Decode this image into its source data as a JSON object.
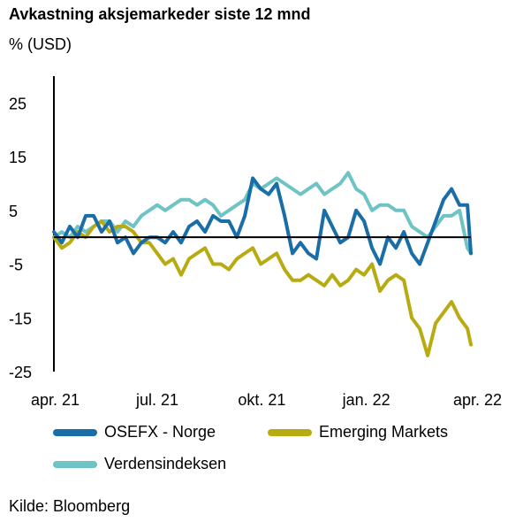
{
  "title": "Avkastning aksjemarkeder siste 12 mnd",
  "subtitle": "% (USD)",
  "source": "Kilde: Bloomberg",
  "colors": {
    "osefx": "#1a6ea8",
    "em": "#b8ab12",
    "world": "#6ec3c4",
    "axis": "#000000"
  },
  "chart_data": {
    "type": "line",
    "ylim": [
      -25,
      30
    ],
    "yticks": [
      "25",
      "15",
      "5",
      "-5",
      "-15",
      "-25"
    ],
    "ytick_values": [
      25,
      15,
      5,
      -5,
      -15,
      -25
    ],
    "xticks": [
      "apr. 21",
      "jul. 21",
      "okt. 21",
      "jan. 22",
      "apr. 22"
    ],
    "xtick_values": [
      "2021-04-20",
      "2021-07-20",
      "2021-10-20",
      "2022-01-20",
      "2022-04-20"
    ],
    "xlim": [
      "2021-04-20",
      "2022-04-22"
    ],
    "zero_line": true,
    "grid": false,
    "legend_position": "bottom",
    "series": [
      {
        "name": "OSEFX - Norge",
        "color_key": "osefx",
        "x": [
          "2021-04-20",
          "2021-04-27",
          "2021-05-04",
          "2021-05-11",
          "2021-05-18",
          "2021-05-25",
          "2021-06-01",
          "2021-06-08",
          "2021-06-15",
          "2021-06-22",
          "2021-06-29",
          "2021-07-06",
          "2021-07-13",
          "2021-07-20",
          "2021-07-27",
          "2021-08-03",
          "2021-08-10",
          "2021-08-17",
          "2021-08-24",
          "2021-08-31",
          "2021-09-07",
          "2021-09-14",
          "2021-09-21",
          "2021-09-28",
          "2021-10-05",
          "2021-10-12",
          "2021-10-19",
          "2021-10-26",
          "2021-11-02",
          "2021-11-09",
          "2021-11-16",
          "2021-11-23",
          "2021-11-30",
          "2021-12-07",
          "2021-12-14",
          "2021-12-21",
          "2021-12-28",
          "2022-01-04",
          "2022-01-11",
          "2022-01-18",
          "2022-01-25",
          "2022-02-01",
          "2022-02-08",
          "2022-02-15",
          "2022-02-22",
          "2022-03-01",
          "2022-03-08",
          "2022-03-15",
          "2022-03-22",
          "2022-03-29",
          "2022-04-05",
          "2022-04-12",
          "2022-04-19",
          "2022-04-22"
        ],
        "values": [
          1,
          -1,
          2,
          0,
          4,
          4,
          1,
          3,
          -1,
          0,
          -3,
          -1,
          0,
          0,
          -1,
          1,
          -1,
          2,
          3,
          1,
          4,
          3,
          3,
          0,
          4,
          11,
          9,
          8,
          10,
          4,
          -3,
          -1,
          -3,
          -4,
          5,
          2,
          -1,
          0,
          5,
          3,
          -2,
          -5,
          0,
          -2,
          1,
          -3,
          -5,
          -1,
          3,
          7,
          9,
          6,
          6,
          -3
        ]
      },
      {
        "name": "Emerging Markets",
        "color_key": "em",
        "x": [
          "2021-04-20",
          "2021-04-27",
          "2021-05-04",
          "2021-05-11",
          "2021-05-18",
          "2021-05-25",
          "2021-06-01",
          "2021-06-08",
          "2021-06-15",
          "2021-06-22",
          "2021-06-29",
          "2021-07-06",
          "2021-07-13",
          "2021-07-20",
          "2021-07-27",
          "2021-08-03",
          "2021-08-10",
          "2021-08-17",
          "2021-08-24",
          "2021-08-31",
          "2021-09-07",
          "2021-09-14",
          "2021-09-21",
          "2021-09-28",
          "2021-10-05",
          "2021-10-12",
          "2021-10-19",
          "2021-10-26",
          "2021-11-02",
          "2021-11-09",
          "2021-11-16",
          "2021-11-23",
          "2021-11-30",
          "2021-12-07",
          "2021-12-14",
          "2021-12-21",
          "2021-12-28",
          "2022-01-04",
          "2022-01-11",
          "2022-01-18",
          "2022-01-25",
          "2022-02-01",
          "2022-02-08",
          "2022-02-15",
          "2022-02-22",
          "2022-03-01",
          "2022-03-08",
          "2022-03-15",
          "2022-03-22",
          "2022-03-29",
          "2022-04-05",
          "2022-04-12",
          "2022-04-19",
          "2022-04-22"
        ],
        "values": [
          0,
          -2,
          -1,
          1,
          0,
          2,
          3,
          1,
          2,
          2,
          1,
          -1,
          -1,
          -3,
          -5,
          -4,
          -7,
          -4,
          -3,
          -2,
          -5,
          -5,
          -6,
          -4,
          -3,
          -2,
          -5,
          -4,
          -3,
          -6,
          -8,
          -8,
          -7,
          -8,
          -9,
          -7,
          -9,
          -8,
          -6,
          -7,
          -5,
          -10,
          -8,
          -7,
          -8,
          -15,
          -17,
          -22,
          -16,
          -14,
          -12,
          -15,
          -17,
          -20
        ]
      },
      {
        "name": "Verdensindeksen",
        "color_key": "world",
        "x": [
          "2021-04-20",
          "2021-04-27",
          "2021-05-04",
          "2021-05-11",
          "2021-05-18",
          "2021-05-25",
          "2021-06-01",
          "2021-06-08",
          "2021-06-15",
          "2021-06-22",
          "2021-06-29",
          "2021-07-06",
          "2021-07-13",
          "2021-07-20",
          "2021-07-27",
          "2021-08-03",
          "2021-08-10",
          "2021-08-17",
          "2021-08-24",
          "2021-08-31",
          "2021-09-07",
          "2021-09-14",
          "2021-09-21",
          "2021-09-28",
          "2021-10-05",
          "2021-10-12",
          "2021-10-19",
          "2021-10-26",
          "2021-11-02",
          "2021-11-09",
          "2021-11-16",
          "2021-11-23",
          "2021-11-30",
          "2021-12-07",
          "2021-12-14",
          "2021-12-21",
          "2021-12-28",
          "2022-01-04",
          "2022-01-11",
          "2022-01-18",
          "2022-01-25",
          "2022-02-01",
          "2022-02-08",
          "2022-02-15",
          "2022-02-22",
          "2022-03-01",
          "2022-03-08",
          "2022-03-15",
          "2022-03-22",
          "2022-03-29",
          "2022-04-05",
          "2022-04-12",
          "2022-04-19",
          "2022-04-22"
        ],
        "values": [
          0,
          1,
          0,
          2,
          1,
          2,
          3,
          3,
          1,
          3,
          2,
          4,
          5,
          6,
          5,
          6,
          7,
          7,
          6,
          7,
          6,
          4,
          5,
          6,
          7,
          10,
          9,
          10,
          11,
          10,
          9,
          8,
          9,
          10,
          8,
          9,
          10,
          12,
          9,
          8,
          5,
          6,
          6,
          5,
          5,
          2,
          1,
          0,
          2,
          4,
          4,
          5,
          -2,
          -3
        ]
      }
    ]
  }
}
